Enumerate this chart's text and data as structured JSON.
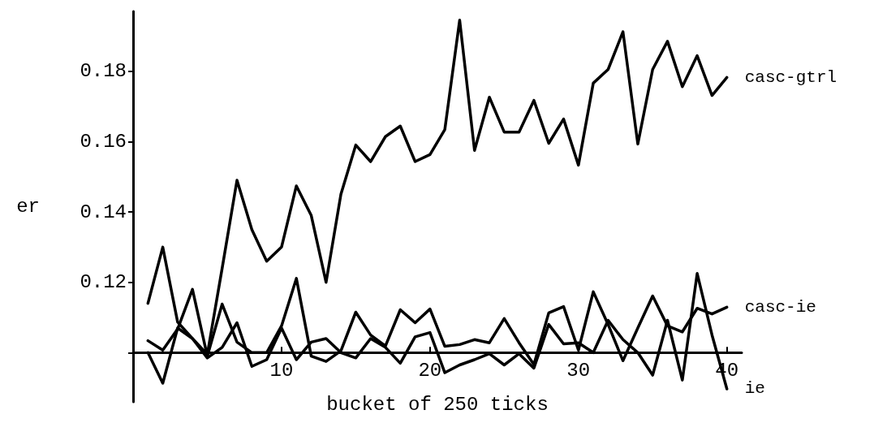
{
  "chart_data": {
    "type": "line",
    "xlabel": "bucket of 250 ticks",
    "ylabel": "er",
    "x": [
      1,
      2,
      3,
      4,
      5,
      6,
      7,
      8,
      9,
      10,
      11,
      12,
      13,
      14,
      15,
      16,
      17,
      18,
      19,
      20,
      21,
      22,
      23,
      24,
      25,
      26,
      27,
      28,
      29,
      30,
      31,
      32,
      33,
      34,
      35,
      36,
      37,
      38,
      39,
      40
    ],
    "series": [
      {
        "name": "casc-gtrl",
        "color": "#000000",
        "values": [
          0.114,
          0.13,
          0.1087,
          0.104,
          0.0995,
          0.124,
          0.149,
          0.135,
          0.126,
          0.13,
          0.1474,
          0.139,
          0.12,
          0.145,
          0.159,
          0.1543,
          0.1614,
          0.1644,
          0.1543,
          0.1563,
          0.1634,
          0.1945,
          0.1575,
          0.1726,
          0.1627,
          0.1627,
          0.1717,
          0.1595,
          0.1664,
          0.1533,
          0.1766,
          0.1805,
          0.1912,
          0.1593,
          0.1805,
          0.1885,
          0.1756,
          0.1844,
          0.1731,
          0.1782
        ]
      },
      {
        "name": "casc-ie",
        "color": "#000000",
        "values": [
          0.1034,
          0.1007,
          0.1067,
          0.118,
          0.099,
          0.1138,
          0.103,
          0.1,
          0.1,
          0.1076,
          0.1211,
          0.099,
          0.0975,
          0.1005,
          0.1115,
          0.105,
          0.1019,
          0.1122,
          0.1085,
          0.1124,
          0.1018,
          0.1023,
          0.1037,
          0.1028,
          0.1097,
          0.1028,
          0.0966,
          0.1113,
          0.1131,
          0.1007,
          0.1173,
          0.108,
          0.0977,
          0.107,
          0.1161,
          0.1076,
          0.1059,
          0.1126,
          0.111,
          0.1129
        ]
      },
      {
        "name": "ie",
        "color": "#000000",
        "values": [
          0.1,
          0.0913,
          0.107,
          0.104,
          0.0985,
          0.1015,
          0.1085,
          0.0961,
          0.098,
          0.107,
          0.098,
          0.103,
          0.104,
          0.1,
          0.0985,
          0.104,
          0.1015,
          0.097,
          0.1045,
          0.1057,
          0.0943,
          0.0965,
          0.098,
          0.0997,
          0.0965,
          0.0997,
          0.0956,
          0.108,
          0.1025,
          0.1028,
          0.1,
          0.1092,
          0.1037,
          0.1,
          0.0936,
          0.1092,
          0.0922,
          0.1225,
          0.105,
          0.0897
        ]
      }
    ],
    "xlim": [
      0,
      41
    ],
    "xticks": [
      10,
      20,
      30,
      40
    ],
    "ylim": [
      0.086,
      0.197
    ],
    "yticks": [
      {
        "value": 0.1,
        "label": null
      },
      0.12,
      0.14,
      0.16,
      0.18
    ],
    "grid": false,
    "legend": false,
    "marker": "none",
    "line_style": "solid"
  }
}
